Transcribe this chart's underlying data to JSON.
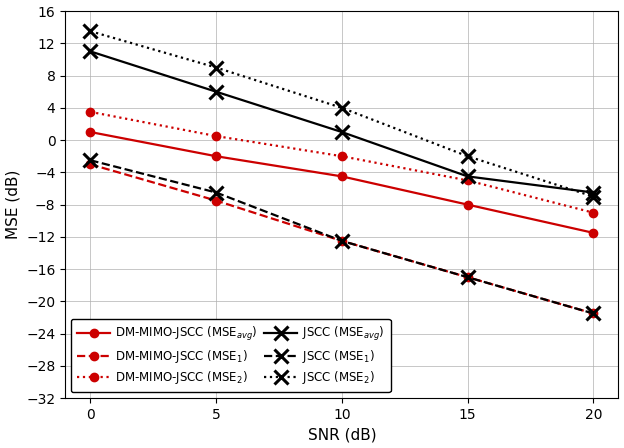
{
  "snr": [
    0,
    5,
    10,
    15,
    20
  ],
  "dm_avg": [
    1.0,
    -2.0,
    -4.5,
    -8.0,
    -11.5
  ],
  "dm_mse1": [
    -3.0,
    -7.5,
    -12.5,
    -17.0,
    -21.5
  ],
  "dm_mse2": [
    3.5,
    0.5,
    -2.0,
    -5.0,
    -9.0
  ],
  "jscc_avg": [
    11.0,
    6.0,
    1.0,
    -4.5,
    -6.5
  ],
  "jscc_mse1": [
    -2.5,
    -6.5,
    -12.5,
    -17.0,
    -21.5
  ],
  "jscc_mse2": [
    13.5,
    9.0,
    4.0,
    -2.0,
    -7.0
  ],
  "ylim": [
    -32,
    16
  ],
  "yticks": [
    -32,
    -28,
    -24,
    -20,
    -16,
    -12,
    -8,
    -4,
    0,
    4,
    8,
    12,
    16
  ],
  "xticks": [
    0,
    5,
    10,
    15,
    20
  ],
  "xlim": [
    -1,
    21
  ],
  "xlabel": "SNR (dB)",
  "ylabel": "MSE (dB)",
  "red_color": "#cc0000",
  "black_color": "#000000",
  "lw": 1.6,
  "ms_x": 10,
  "ms_dot": 6,
  "mew": 2.2,
  "legend_labels": [
    "DM-MIMO-JSCC (MSE$_{avg}$)",
    "DM-MIMO-JSCC (MSE$_1$)",
    "DM-MIMO-JSCC (MSE$_2$)",
    "JSCC (MSE$_{avg}$)",
    "JSCC (MSE$_1$)",
    "JSCC (MSE$_2$)"
  ]
}
